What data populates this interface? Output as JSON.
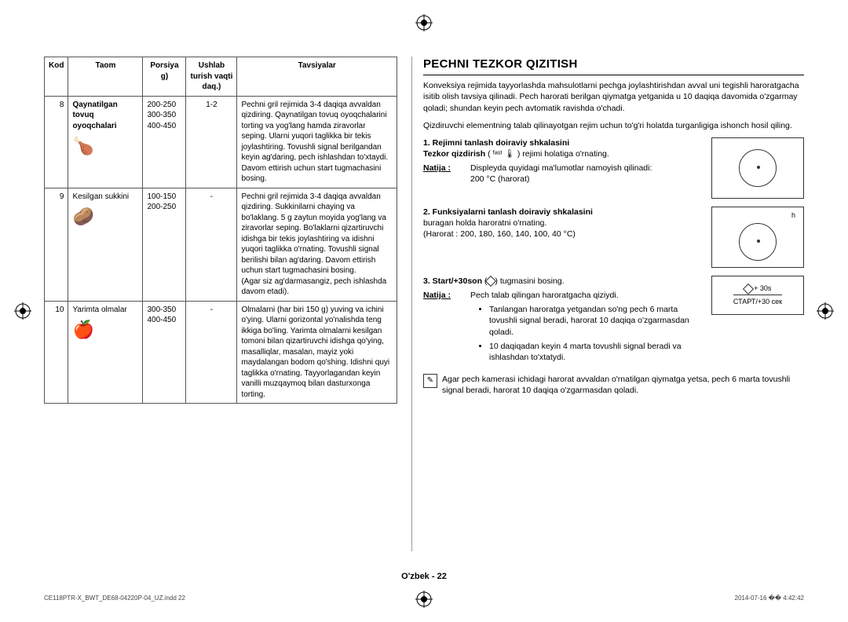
{
  "table": {
    "headers": {
      "kod": "Kod",
      "taom": "Taom",
      "porsiya": "Porsiya g)",
      "vaqti": "Ushlab turish vaqti daq.)",
      "tavsiya": "Tavsiyalar"
    },
    "rows": [
      {
        "kod": "8",
        "taom": "Qaynatilgan tovuq oyoqchalari",
        "bold": true,
        "icon": "🍗",
        "por": "200-250\n300-350\n400-450",
        "time": "1-2",
        "adv": "Pechni gril rejimida 3-4 daqiqa avvaldan qizdiring. Qaynatilgan tovuq oyoqchalarini torting va yog'lang hamda ziravorlar seping. Ularni yuqori taglikka bir tekis joylashtiring. Tovushli signal berilgandan keyin ag'daring, pech ishlashdan to'xtaydi. Davom ettirish uchun start tugmachasini bosing."
      },
      {
        "kod": "9",
        "taom": "Kesilgan sukkini",
        "bold": false,
        "icon": "🥔",
        "por": "100-150\n200-250",
        "time": "-",
        "adv": "Pechni gril rejimida 3-4 daqiqa avvaldan qizdiring. Sukkinilarni chaying va bo'laklang. 5 g zaytun moyida yog'lang va ziravorlar seping. Bo'laklarni qizartiruvchi idishga bir tekis joylashtiring va idishni yuqori taglikka o'rnating. Tovushli signal berilishi bilan ag'daring. Davom ettirish uchun start tugmachasini bosing.\n(Agar siz ag'darmasangiz, pech ishlashda davom etadi)."
      },
      {
        "kod": "10",
        "taom": "Yarimta olmalar",
        "bold": false,
        "icon": "🍎",
        "por": "300-350\n400-450",
        "time": "-",
        "adv": "Olmalarni (har biri 150 g) yuving va ichini o'ying. Ularni gorizontal yo'nalishda teng ikkiga bo'ling. Yarimta olmalarni kesilgan tomoni bilan qizartiruvchi idishga qo'ying, masalliqlar, masalan, mayiz yoki maydalangan bodom qo'shing. Idishni quyi taglikka o'rnating. Tayyorlagandan keyin vanilli muzqaymoq bilan dasturxonga torting."
      }
    ]
  },
  "right": {
    "title": "PECHNI TEZKOR QIZITISH",
    "intro1": "Konveksiya rejimida tayyorlashda mahsulotlarni pechga joylashtirishdan avval uni tegishli haroratgacha isitib olish tavsiya qilinadi. Pech harorati berilgan qiymatga yetganida u 10 daqiqa davomida o'zgarmay qoladi; shundan keyin pech avtomatik ravishda o'chadi.",
    "intro2": "Qizdiruvchi elementning talab qilinayotgan rejim uchun to'g'ri holatda turganligiga ishonch hosil qiling.",
    "step1_lead": "1.  Rejimni tanlash doiraviy shkalasini",
    "step1_rest": "Tezkor qizdirish (🔥) rejimi holatiga o'rnating.",
    "step1_rest_b": "Tezkor qizdirish",
    "step1_rest_a": " ( ᶠᵃˢᵗ 🌡 ) rejimi holatiga o'rnating.",
    "step1_res_lbl": "Natija :",
    "step1_res": "Displeyda quyidagi ma'lumotlar namoyish qilinadi:\n200 °C  (harorat)",
    "step2_lead": "2.  Funksiyalarni tanlash doiraviy shkalasini",
    "step2_rest": "buragan holda haroratni o'rnating.\n(Harorat : 200, 180, 160, 140, 100, 40 °C)",
    "step3_lead": "3.  Start/+30son",
    "step3_rest": " tugmasini bosing.",
    "step3_res_lbl": "Natija :",
    "step3_res": "Pech talab qilingan haroratgacha qiziydi.",
    "bullets": [
      "Tanlangan haroratga yetgandan so'ng pech 6 marta tovushli signal beradi, harorat 10 daqiqa o'zgarmasdan qoladi.",
      "10 daqiqadan keyin 4 marta tovushli signal beradi va ishlashdan to'xtatydi."
    ],
    "note": "Agar pech kamerasi ichidagi harorat avvaldan o'rnatilgan qiymatga yetsa, pech 6 marta tovushli signal beradi, harorat 10 daqiqa o'zgarmasdan qoladi.",
    "dial2_label": "h",
    "dial3_line1": "+ 30s",
    "dial3_line2": "СТАРТ/+30 сек"
  },
  "footer": "O'zbek - 22",
  "meta": {
    "file": "CE118PTR-X_BWT_DE68-04220P-04_UZ.indd   22",
    "date": "2014-07-16   �� 4:42:42"
  }
}
